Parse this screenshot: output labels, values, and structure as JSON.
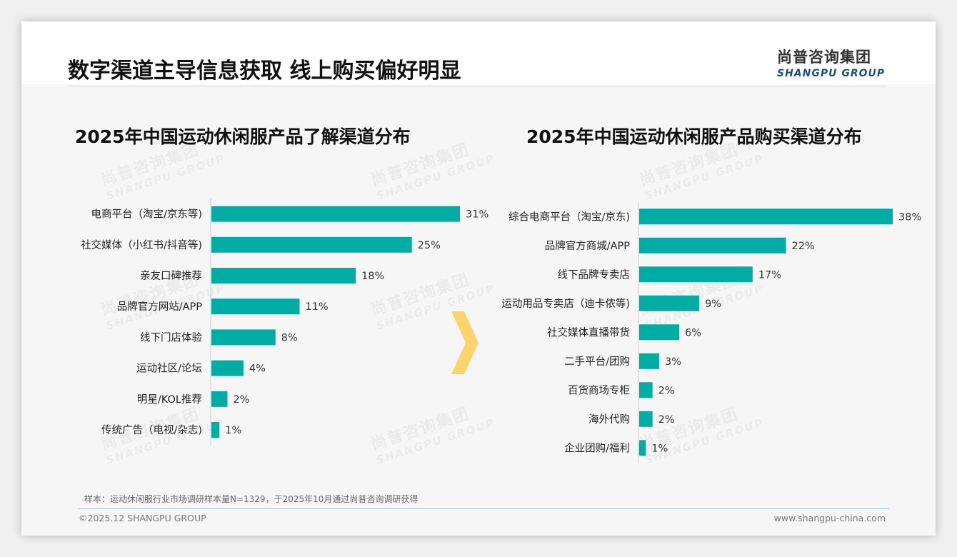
{
  "page_title": "数字渠道主导信息获取 线上购买偏好明显",
  "logo": {
    "cn": "尚普咨询集团",
    "en": "SHANGPU GROUP"
  },
  "watermark": {
    "cn": "尚普咨询集团",
    "en": "SHANGPU GROUP"
  },
  "colors": {
    "bar": "#00ada5",
    "arrow": "#ffd36b",
    "label": "#222222",
    "value": "#333333"
  },
  "chart_data": [
    {
      "type": "bar",
      "orientation": "horizontal",
      "title": "2025年中国运动休闲服产品了解渠道分布",
      "categories": [
        "电商平台（淘宝/京东等)",
        "社交媒体（小红书/抖音等)",
        "亲友口碑推荐",
        "品牌官方网站/APP",
        "线下门店体验",
        "运动社区/论坛",
        "明星/KOL推荐",
        "传统广告（电视/杂志)"
      ],
      "values": [
        31,
        25,
        18,
        11,
        8,
        4,
        2,
        1
      ],
      "value_labels": [
        "31%",
        "25%",
        "18%",
        "11%",
        "8%",
        "4%",
        "2%",
        "1%"
      ],
      "unit": "%",
      "xlim": [
        0,
        31
      ]
    },
    {
      "type": "bar",
      "orientation": "horizontal",
      "title": "2025年中国运动休闲服产品购买渠道分布",
      "categories": [
        "综合电商平台（淘宝/京东)",
        "品牌官方商城/APP",
        "线下品牌专卖店",
        "运动用品专卖店（迪卡侬等)",
        "社交媒体直播带货",
        "二手平台/团购",
        "百货商场专柜",
        "海外代购",
        "企业团购/福利"
      ],
      "values": [
        38,
        22,
        17,
        9,
        6,
        3,
        2,
        2,
        1
      ],
      "value_labels": [
        "38%",
        "22%",
        "17%",
        "9%",
        "6%",
        "3%",
        "2%",
        "2%",
        "1%"
      ],
      "unit": "%",
      "xlim": [
        0,
        38
      ]
    }
  ],
  "footer": {
    "note": "样本：运动休闲服行业市场调研样本量N=1329，于2025年10月通过尚普咨询调研获得",
    "copyright": "©2025.12 SHANGPU GROUP",
    "website": "www.shangpu-china.com"
  }
}
